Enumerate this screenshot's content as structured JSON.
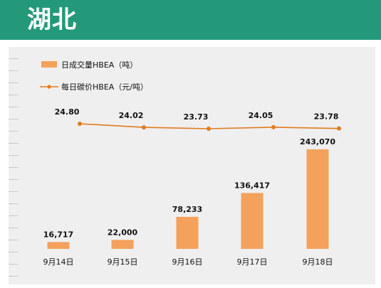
{
  "header": {
    "title": "湖北"
  },
  "colors": {
    "banner": "#24997a",
    "bar": "#f4a15c",
    "line": "#e07b1c",
    "plot_bg": "#efefef"
  },
  "chart_data": {
    "type": "bar+line",
    "categories": [
      "9月14日",
      "9月15日",
      "9月16日",
      "9月17日",
      "9月18日"
    ],
    "series": [
      {
        "name": "日成交量HBEA（吨）",
        "type": "bar",
        "values": [
          16717,
          22000,
          78233,
          136417,
          243070
        ],
        "labels": [
          "16,717",
          "22,000",
          "78,233",
          "136,417",
          "243,070"
        ]
      },
      {
        "name": "每日碳价HBEA（元/吨）",
        "type": "line",
        "values": [
          24.8,
          24.02,
          23.73,
          24.05,
          23.78
        ],
        "labels": [
          "24.80",
          "24.02",
          "23.73",
          "24.05",
          "23.78"
        ]
      }
    ],
    "legend": {
      "placement": "top-left"
    },
    "grid": false
  }
}
